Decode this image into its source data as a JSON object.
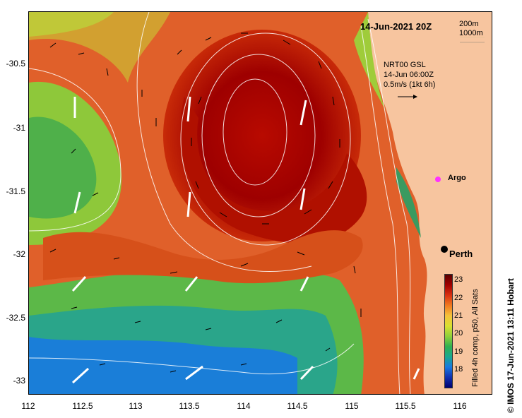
{
  "title": "14-Jun-2021 20Z",
  "contour_legend": [
    "200m",
    "1000m"
  ],
  "model_info": {
    "line1": "NRT00 GSL",
    "line2": "14-Jun 06:00Z",
    "line3": "0.5m/s (1kt 6h)"
  },
  "argo_label": "Argo",
  "perth_label": "Perth",
  "colorbar": {
    "ticks": [
      "23",
      "22",
      "21",
      "20",
      "19",
      "18"
    ],
    "label": "Filled 4h comp, p50, All Sats"
  },
  "credit": "© IMOS 17-Jun-2021 13:11 Hobart",
  "axes": {
    "x_ticks": [
      "112",
      "112.5",
      "113",
      "113.5",
      "114",
      "114.5",
      "115",
      "115.5",
      "116"
    ],
    "y_ticks": [
      "-30.5",
      "-31",
      "-31.5",
      "-32",
      "-32.5",
      "-33"
    ]
  },
  "colors": {
    "land": "#f7c59f",
    "warm_core": "#a10000",
    "contour": "#ffffff",
    "argo_marker": "#ff33ff"
  }
}
